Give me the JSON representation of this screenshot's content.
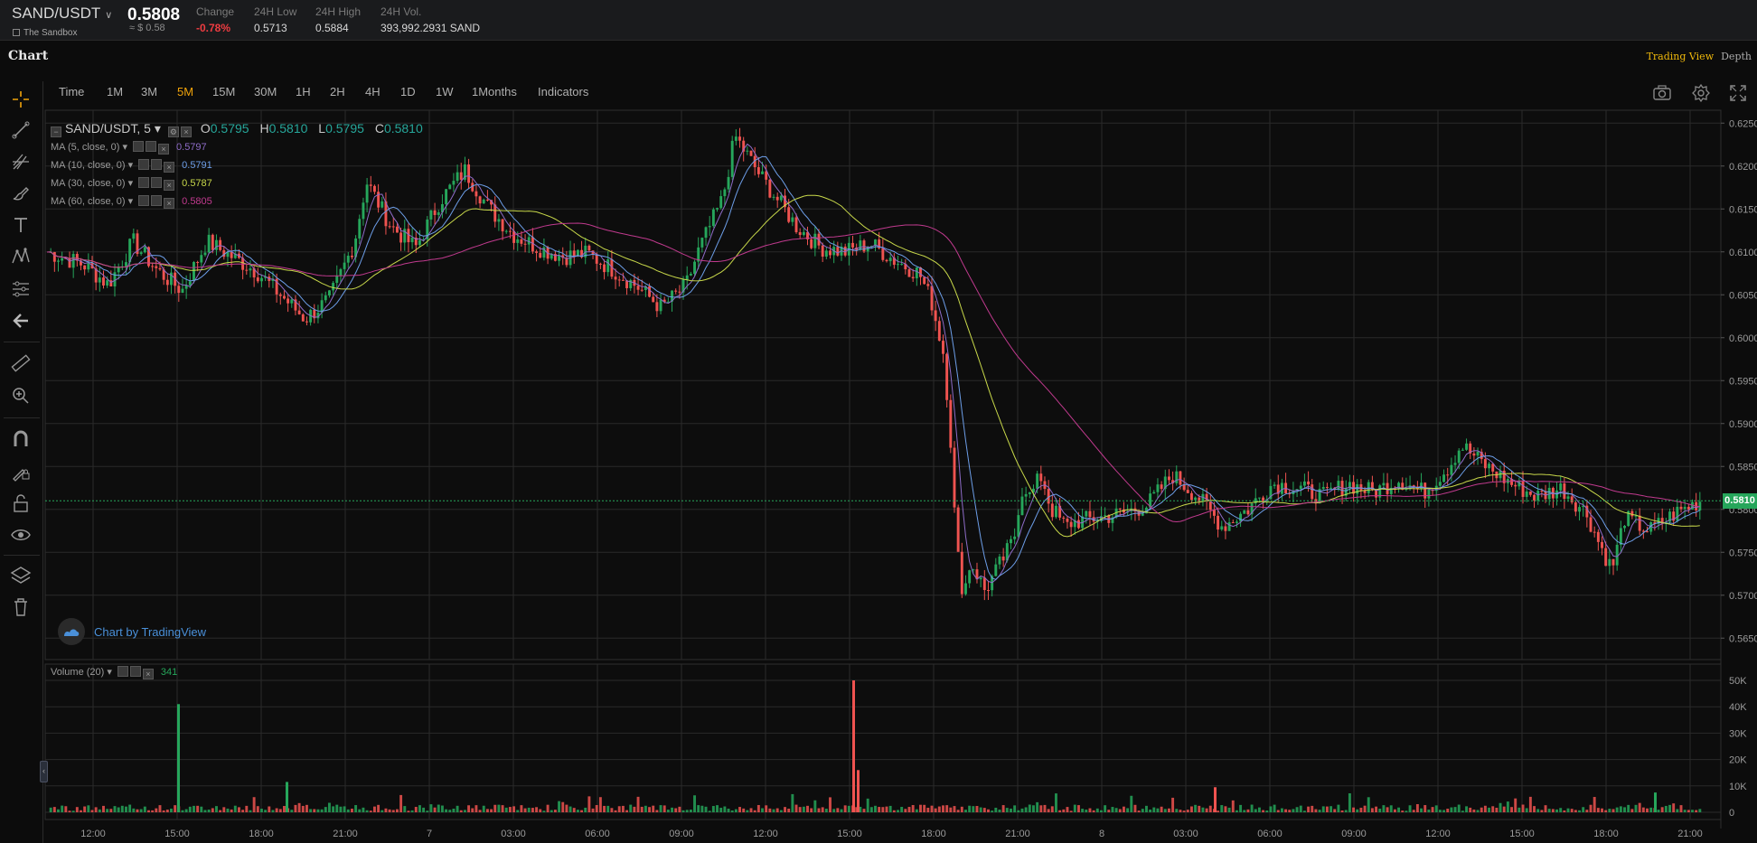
{
  "ticker": {
    "pair": "SAND/USDT",
    "coin_name": "The Sandbox",
    "last_price": "0.5808",
    "last_price_usd": "≈ $ 0.58",
    "change_label": "Change",
    "change_value": "-0.78%",
    "low_label": "24H Low",
    "low_value": "0.5713",
    "high_label": "24H High",
    "high_value": "0.5884",
    "vol_label": "24H Vol.",
    "vol_value": "393,992.2931 SAND"
  },
  "chart_header": {
    "title": "Chart",
    "trading_view": "Trading View",
    "depth": "Depth"
  },
  "toolbar": {
    "intervals": [
      "Time",
      "1M",
      "3M",
      "5M",
      "15M",
      "30M",
      "1H",
      "2H",
      "4H",
      "1D",
      "1W",
      "1Months"
    ],
    "active_interval": "5M",
    "indicators": "Indicators",
    "icons": [
      "camera-icon",
      "gear-icon",
      "fullscreen-icon"
    ]
  },
  "left_tools": [
    "crosshair-icon",
    "trend-line-icon",
    "pitchfork-icon",
    "brush-icon",
    "text-icon",
    "pattern-icon",
    "measure-icon",
    "back-arrow-icon",
    "ruler-icon",
    "zoom-in-icon",
    "magnet-icon",
    "lock-drawing-icon",
    "unlock-icon",
    "eye-icon",
    "layers-icon",
    "trash-icon"
  ],
  "legend": {
    "symbol": "SAND/USDT, 5",
    "o_label": "O",
    "o": "0.5795",
    "h_label": "H",
    "h": "0.5810",
    "l_label": "L",
    "l": "0.5795",
    "c_label": "C",
    "c": "0.5810",
    "ma": [
      {
        "label": "MA (5, close, 0)",
        "value": "0.5797",
        "color": "#8e6cc8"
      },
      {
        "label": "MA (10, close, 0)",
        "value": "0.5791",
        "color": "#6d9ee8"
      },
      {
        "label": "MA (30, close, 0)",
        "value": "0.5787",
        "color": "#c8d84a"
      },
      {
        "label": "MA (60, close, 0)",
        "value": "0.5805",
        "color": "#c03a8e"
      }
    ],
    "volume_label": "Volume (20)",
    "volume_value": "341"
  },
  "tv_badge": "Chart by TradingView",
  "last_price_tag": "0.5810",
  "colors": {
    "up": "#26a65b",
    "down": "#ef5350",
    "accent": "#f0a30a",
    "grid": "#2a2a2a"
  },
  "chart_data": {
    "type": "line",
    "price_axis": {
      "min": 0.5625,
      "max": 0.6265,
      "ticks": [
        "0.6250",
        "0.6200",
        "0.6150",
        "0.6100",
        "0.6050",
        "0.6000",
        "0.5950",
        "0.5900",
        "0.5850",
        "0.5800",
        "0.5750",
        "0.5700",
        "0.5650"
      ]
    },
    "volume_axis": {
      "max": 55000,
      "ticks": [
        "50K",
        "40K",
        "30K",
        "20K",
        "10K",
        "0"
      ]
    },
    "time_ticks": [
      "12:00",
      "15:00",
      "18:00",
      "21:00",
      "7",
      "03:00",
      "06:00",
      "09:00",
      "12:00",
      "15:00",
      "18:00",
      "21:00",
      "8",
      "03:00",
      "06:00",
      "09:00",
      "12:00",
      "15:00",
      "18:00",
      "21:00"
    ],
    "close_path": [
      [
        0,
        0.61
      ],
      [
        0.03,
        0.6085
      ],
      [
        0.05,
        0.6062
      ],
      [
        0.07,
        0.6112
      ],
      [
        0.09,
        0.6078
      ],
      [
        0.11,
        0.6055
      ],
      [
        0.13,
        0.6112
      ],
      [
        0.15,
        0.6095
      ],
      [
        0.17,
        0.6078
      ],
      [
        0.19,
        0.605
      ],
      [
        0.21,
        0.6022
      ],
      [
        0.23,
        0.6045
      ],
      [
        0.25,
        0.611
      ],
      [
        0.26,
        0.6182
      ],
      [
        0.28,
        0.613
      ],
      [
        0.3,
        0.6105
      ],
      [
        0.32,
        0.616
      ],
      [
        0.34,
        0.6195
      ],
      [
        0.36,
        0.615
      ],
      [
        0.38,
        0.612
      ],
      [
        0.4,
        0.6105
      ],
      [
        0.42,
        0.6095
      ],
      [
        0.44,
        0.6098
      ],
      [
        0.46,
        0.608
      ],
      [
        0.48,
        0.606
      ],
      [
        0.5,
        0.6035
      ],
      [
        0.52,
        0.606
      ],
      [
        0.53,
        0.61
      ],
      [
        0.55,
        0.6162
      ],
      [
        0.56,
        0.6235
      ],
      [
        0.58,
        0.619
      ],
      [
        0.6,
        0.615
      ],
      [
        0.61,
        0.613
      ],
      [
        0.63,
        0.6105
      ],
      [
        0.65,
        0.61
      ],
      [
        0.67,
        0.611
      ],
      [
        0.69,
        0.609
      ],
      [
        0.71,
        0.6075
      ],
      [
        0.72,
        0.6042
      ],
      [
        0.73,
        0.598
      ],
      [
        0.735,
        0.5895
      ],
      [
        0.74,
        0.576
      ],
      [
        0.745,
        0.57
      ],
      [
        0.75,
        0.574
      ],
      [
        0.76,
        0.5705
      ],
      [
        0.77,
        0.5735
      ],
      [
        0.78,
        0.5765
      ],
      [
        0.79,
        0.5785
      ],
      [
        0.8,
        0.581
      ],
      [
        0.82,
        0.583
      ],
      [
        0.84,
        0.5815
      ],
      [
        0.86,
        0.5825
      ],
      [
        0.88,
        0.584
      ],
      [
        0.9,
        0.5825
      ],
      [
        0.92,
        0.58
      ],
      [
        0.94,
        0.5795
      ],
      [
        0.96,
        0.5785
      ],
      [
        0.98,
        0.578
      ],
      [
        1.0,
        0.5785
      ]
    ],
    "close_path_2": [
      [
        0,
        0.5785
      ],
      [
        0.04,
        0.579
      ],
      [
        0.08,
        0.5795
      ],
      [
        0.12,
        0.5805
      ],
      [
        0.16,
        0.584
      ],
      [
        0.2,
        0.5815
      ],
      [
        0.24,
        0.578
      ],
      [
        0.28,
        0.58
      ],
      [
        0.32,
        0.583
      ],
      [
        0.36,
        0.5825
      ],
      [
        0.4,
        0.5815
      ],
      [
        0.44,
        0.583
      ],
      [
        0.48,
        0.582
      ],
      [
        0.52,
        0.5835
      ],
      [
        0.56,
        0.582
      ],
      [
        0.6,
        0.585
      ],
      [
        0.62,
        0.5875
      ],
      [
        0.66,
        0.585
      ],
      [
        0.7,
        0.583
      ],
      [
        0.74,
        0.5815
      ],
      [
        0.78,
        0.5825
      ],
      [
        0.82,
        0.5795
      ],
      [
        0.84,
        0.576
      ],
      [
        0.86,
        0.573
      ],
      [
        0.88,
        0.579
      ],
      [
        0.92,
        0.5775
      ],
      [
        0.96,
        0.5795
      ],
      [
        1.0,
        0.581
      ]
    ]
  }
}
